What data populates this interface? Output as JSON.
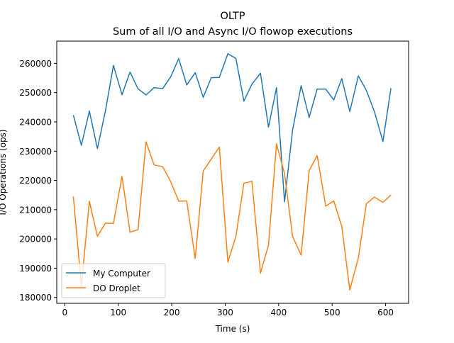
{
  "chart_data": {
    "type": "line",
    "title": "OLTP",
    "subtitle": "Sum of all I/O and Async I/O flowop executions",
    "xlabel": "Time (s)",
    "ylabel": "I/O Operations (ops)",
    "xlim": [
      -15,
      643
    ],
    "ylim": [
      178000,
      267600
    ],
    "xticks": [
      0,
      100,
      200,
      300,
      400,
      500,
      600
    ],
    "xtick_labels": [
      "0",
      "100",
      "200",
      "300",
      "400",
      "500",
      "600"
    ],
    "yticks": [
      180000,
      190000,
      200000,
      210000,
      220000,
      230000,
      240000,
      250000,
      260000
    ],
    "ytick_labels": [
      "180000",
      "190000",
      "200000",
      "210000",
      "220000",
      "230000",
      "240000",
      "250000",
      "260000"
    ],
    "grid": false,
    "legend_position": "lower-left",
    "x": [
      16,
      31,
      46,
      61,
      76,
      91,
      107,
      122,
      137,
      152,
      167,
      183,
      198,
      213,
      228,
      244,
      259,
      274,
      289,
      305,
      320,
      335,
      350,
      366,
      381,
      396,
      411,
      426,
      442,
      457,
      472,
      488,
      503,
      518,
      533,
      549,
      564,
      579,
      595,
      610
    ],
    "series": [
      {
        "name": "My Computer",
        "color": "#1f77b4",
        "values": [
          242300,
          232000,
          243700,
          230900,
          243700,
          259300,
          249300,
          257000,
          251300,
          249200,
          251700,
          251400,
          255400,
          261600,
          252600,
          256800,
          248400,
          255100,
          255200,
          263300,
          261700,
          247100,
          252900,
          256600,
          238200,
          251700,
          212700,
          237100,
          252400,
          241500,
          251200,
          251200,
          247500,
          254800,
          243500,
          255700,
          250800,
          243500,
          233300,
          251500
        ]
      },
      {
        "name": "DO Droplet",
        "color": "#ff7f0e",
        "values": [
          214500,
          184100,
          212900,
          200900,
          205400,
          205300,
          221400,
          202300,
          203200,
          233200,
          225300,
          224700,
          219600,
          212900,
          213000,
          193300,
          223200,
          227300,
          231400,
          192100,
          200800,
          219000,
          219700,
          188300,
          197900,
          232500,
          222300,
          200900,
          194500,
          223300,
          228500,
          211200,
          213000,
          204300,
          182600,
          193400,
          212000,
          214300,
          212500,
          215000
        ]
      }
    ]
  }
}
